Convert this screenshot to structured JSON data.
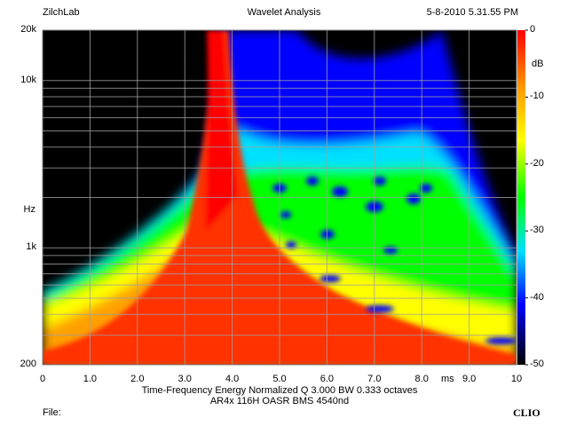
{
  "header": {
    "app": "ZilchLab",
    "title": "Wavelet Analysis",
    "datetime": "5-8-2010 5.31.55 PM"
  },
  "footer": {
    "file_label": "File:",
    "brand": "CLIO"
  },
  "chart_data": {
    "type": "heatmap",
    "title": "Wavelet Analysis",
    "caption_line1": "Time-Frequency Energy   Normalized  Q 3.000 BW 0.333 octaves",
    "caption_line2": "AR4x 116H OASR BMS 4540nd",
    "xlabel": "ms",
    "ylabel": "Hz",
    "x_unit_label": "ms",
    "xlim": [
      0,
      10
    ],
    "ylim": [
      200,
      20000
    ],
    "y_scale": "log",
    "x_ticks": [
      "0",
      "1.0",
      "2.0",
      "3.0",
      "4.0",
      "5.0",
      "6.0",
      "7.0",
      "8.0",
      "9.0",
      "10"
    ],
    "y_tick_labels": [
      {
        "value": 20000,
        "label": "20k"
      },
      {
        "value": 10000,
        "label": "10k"
      },
      {
        "value": 1000,
        "label": "1k"
      },
      {
        "value": 200,
        "label": "200"
      }
    ],
    "colorbar": {
      "unit": "dB",
      "range": [
        -50,
        0
      ],
      "ticks": [
        "0",
        "-10",
        "-20",
        "-30",
        "-40",
        "-50"
      ],
      "colors": [
        "#ff0000",
        "#ffa000",
        "#ffff00",
        "#00ff00",
        "#00e0ff",
        "#0000ff",
        "#000000"
      ]
    },
    "grid": true,
    "description_features": {
      "ridge_time_ms": 3.7,
      "peak_level_db": 0,
      "background_db": -50
    }
  }
}
